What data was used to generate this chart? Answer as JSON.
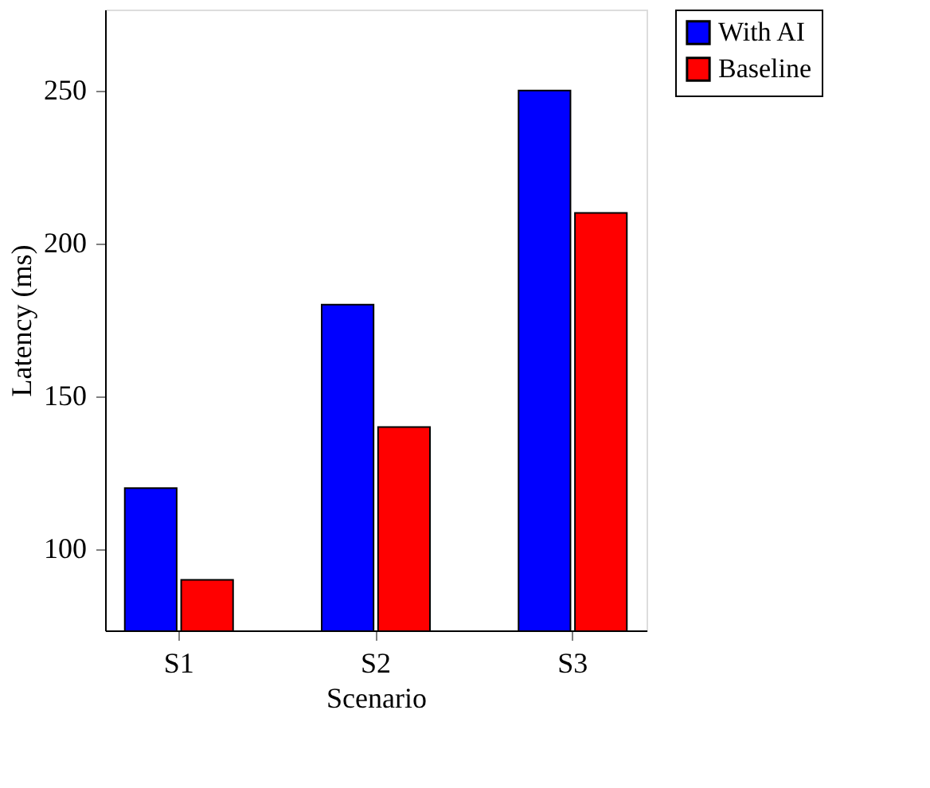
{
  "chart_data": {
    "type": "bar",
    "xlabel": "Scenario",
    "ylabel": "Latency (ms)",
    "categories": [
      "S1",
      "S2",
      "S3"
    ],
    "series": [
      {
        "name": "With AI",
        "color": "#0000ff",
        "values": [
          120,
          180,
          250
        ]
      },
      {
        "name": "Baseline",
        "color": "#ff0000",
        "values": [
          90,
          140,
          210
        ]
      }
    ],
    "ylim": [
      73.5,
      276.5
    ],
    "yticks": [
      100,
      150,
      200,
      250
    ],
    "grid": false,
    "legend": "top right"
  }
}
